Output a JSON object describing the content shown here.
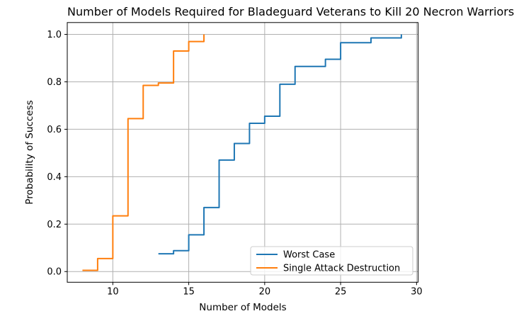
{
  "chart_data": {
    "type": "line",
    "subtype": "step-cdf",
    "step_mode": "steps-post",
    "title": "Number of Models Required for Bladeguard Veterans to Kill 20 Necron Warriors",
    "xlabel": "Number of Models",
    "ylabel": "Probability of Success",
    "xlim": [
      7.0,
      30.1
    ],
    "ylim": [
      -0.045,
      1.05
    ],
    "xticks": [
      10,
      15,
      20,
      25,
      30
    ],
    "yticks": [
      0.0,
      0.2,
      0.4,
      0.6,
      0.8,
      1.0
    ],
    "ytick_labels": [
      "0.0",
      "0.2",
      "0.4",
      "0.6",
      "0.8",
      "1.0"
    ],
    "grid": true,
    "legend": {
      "position": "lower right",
      "entries": [
        "Worst Case",
        "Single Attack Destruction"
      ]
    },
    "series": [
      {
        "name": "Worst Case",
        "color": "#1f77b4",
        "x": [
          13,
          14,
          15,
          16,
          17,
          18,
          19,
          20,
          21,
          22,
          23,
          24,
          25,
          26,
          27,
          28,
          29
        ],
        "y": [
          0.075,
          0.088,
          0.155,
          0.27,
          0.47,
          0.54,
          0.625,
          0.655,
          0.79,
          0.865,
          0.865,
          0.895,
          0.965,
          0.965,
          0.985,
          0.985,
          1.0
        ]
      },
      {
        "name": "Single Attack Destruction",
        "color": "#ff7f0e",
        "x": [
          8,
          9,
          10,
          11,
          12,
          13,
          14,
          15,
          16
        ],
        "y": [
          0.005,
          0.055,
          0.235,
          0.645,
          0.785,
          0.795,
          0.93,
          0.97,
          1.0
        ]
      }
    ],
    "colors": {
      "grid": "#b0b0b0",
      "spine": "#000000",
      "background": "#ffffff",
      "legend_border": "#cccccc"
    }
  }
}
